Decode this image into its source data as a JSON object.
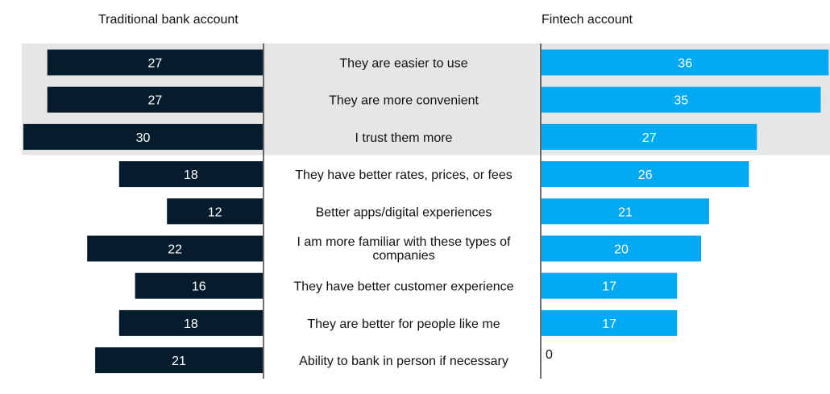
{
  "chart_data": {
    "type": "bar",
    "orientation": "horizontal-butterfly",
    "left_title": "Traditional bank account",
    "right_title": "Fintech account",
    "categories": [
      [
        "They are easier to use"
      ],
      [
        "They are more convenient"
      ],
      [
        "I trust them more"
      ],
      [
        "They have better rates, prices, or fees"
      ],
      [
        "Better apps/digital experiences"
      ],
      [
        "I am more familiar with these types of",
        "companies"
      ],
      [
        "They have better customer experience"
      ],
      [
        "They are better for people like me"
      ],
      [
        "Ability to bank in person if necessary"
      ]
    ],
    "series": [
      {
        "side": "left",
        "values": [
          27,
          27,
          30,
          18,
          12,
          22,
          16,
          18,
          21
        ]
      },
      {
        "side": "right",
        "values": [
          36,
          35,
          27,
          26,
          21,
          20,
          17,
          17,
          0
        ]
      }
    ],
    "highlighted_rows": [
      0,
      1,
      2
    ],
    "colors": {
      "left": "#051c2c",
      "right": "#00a9f4",
      "highlight": "#e6e6e6",
      "axis": "#111111"
    }
  }
}
